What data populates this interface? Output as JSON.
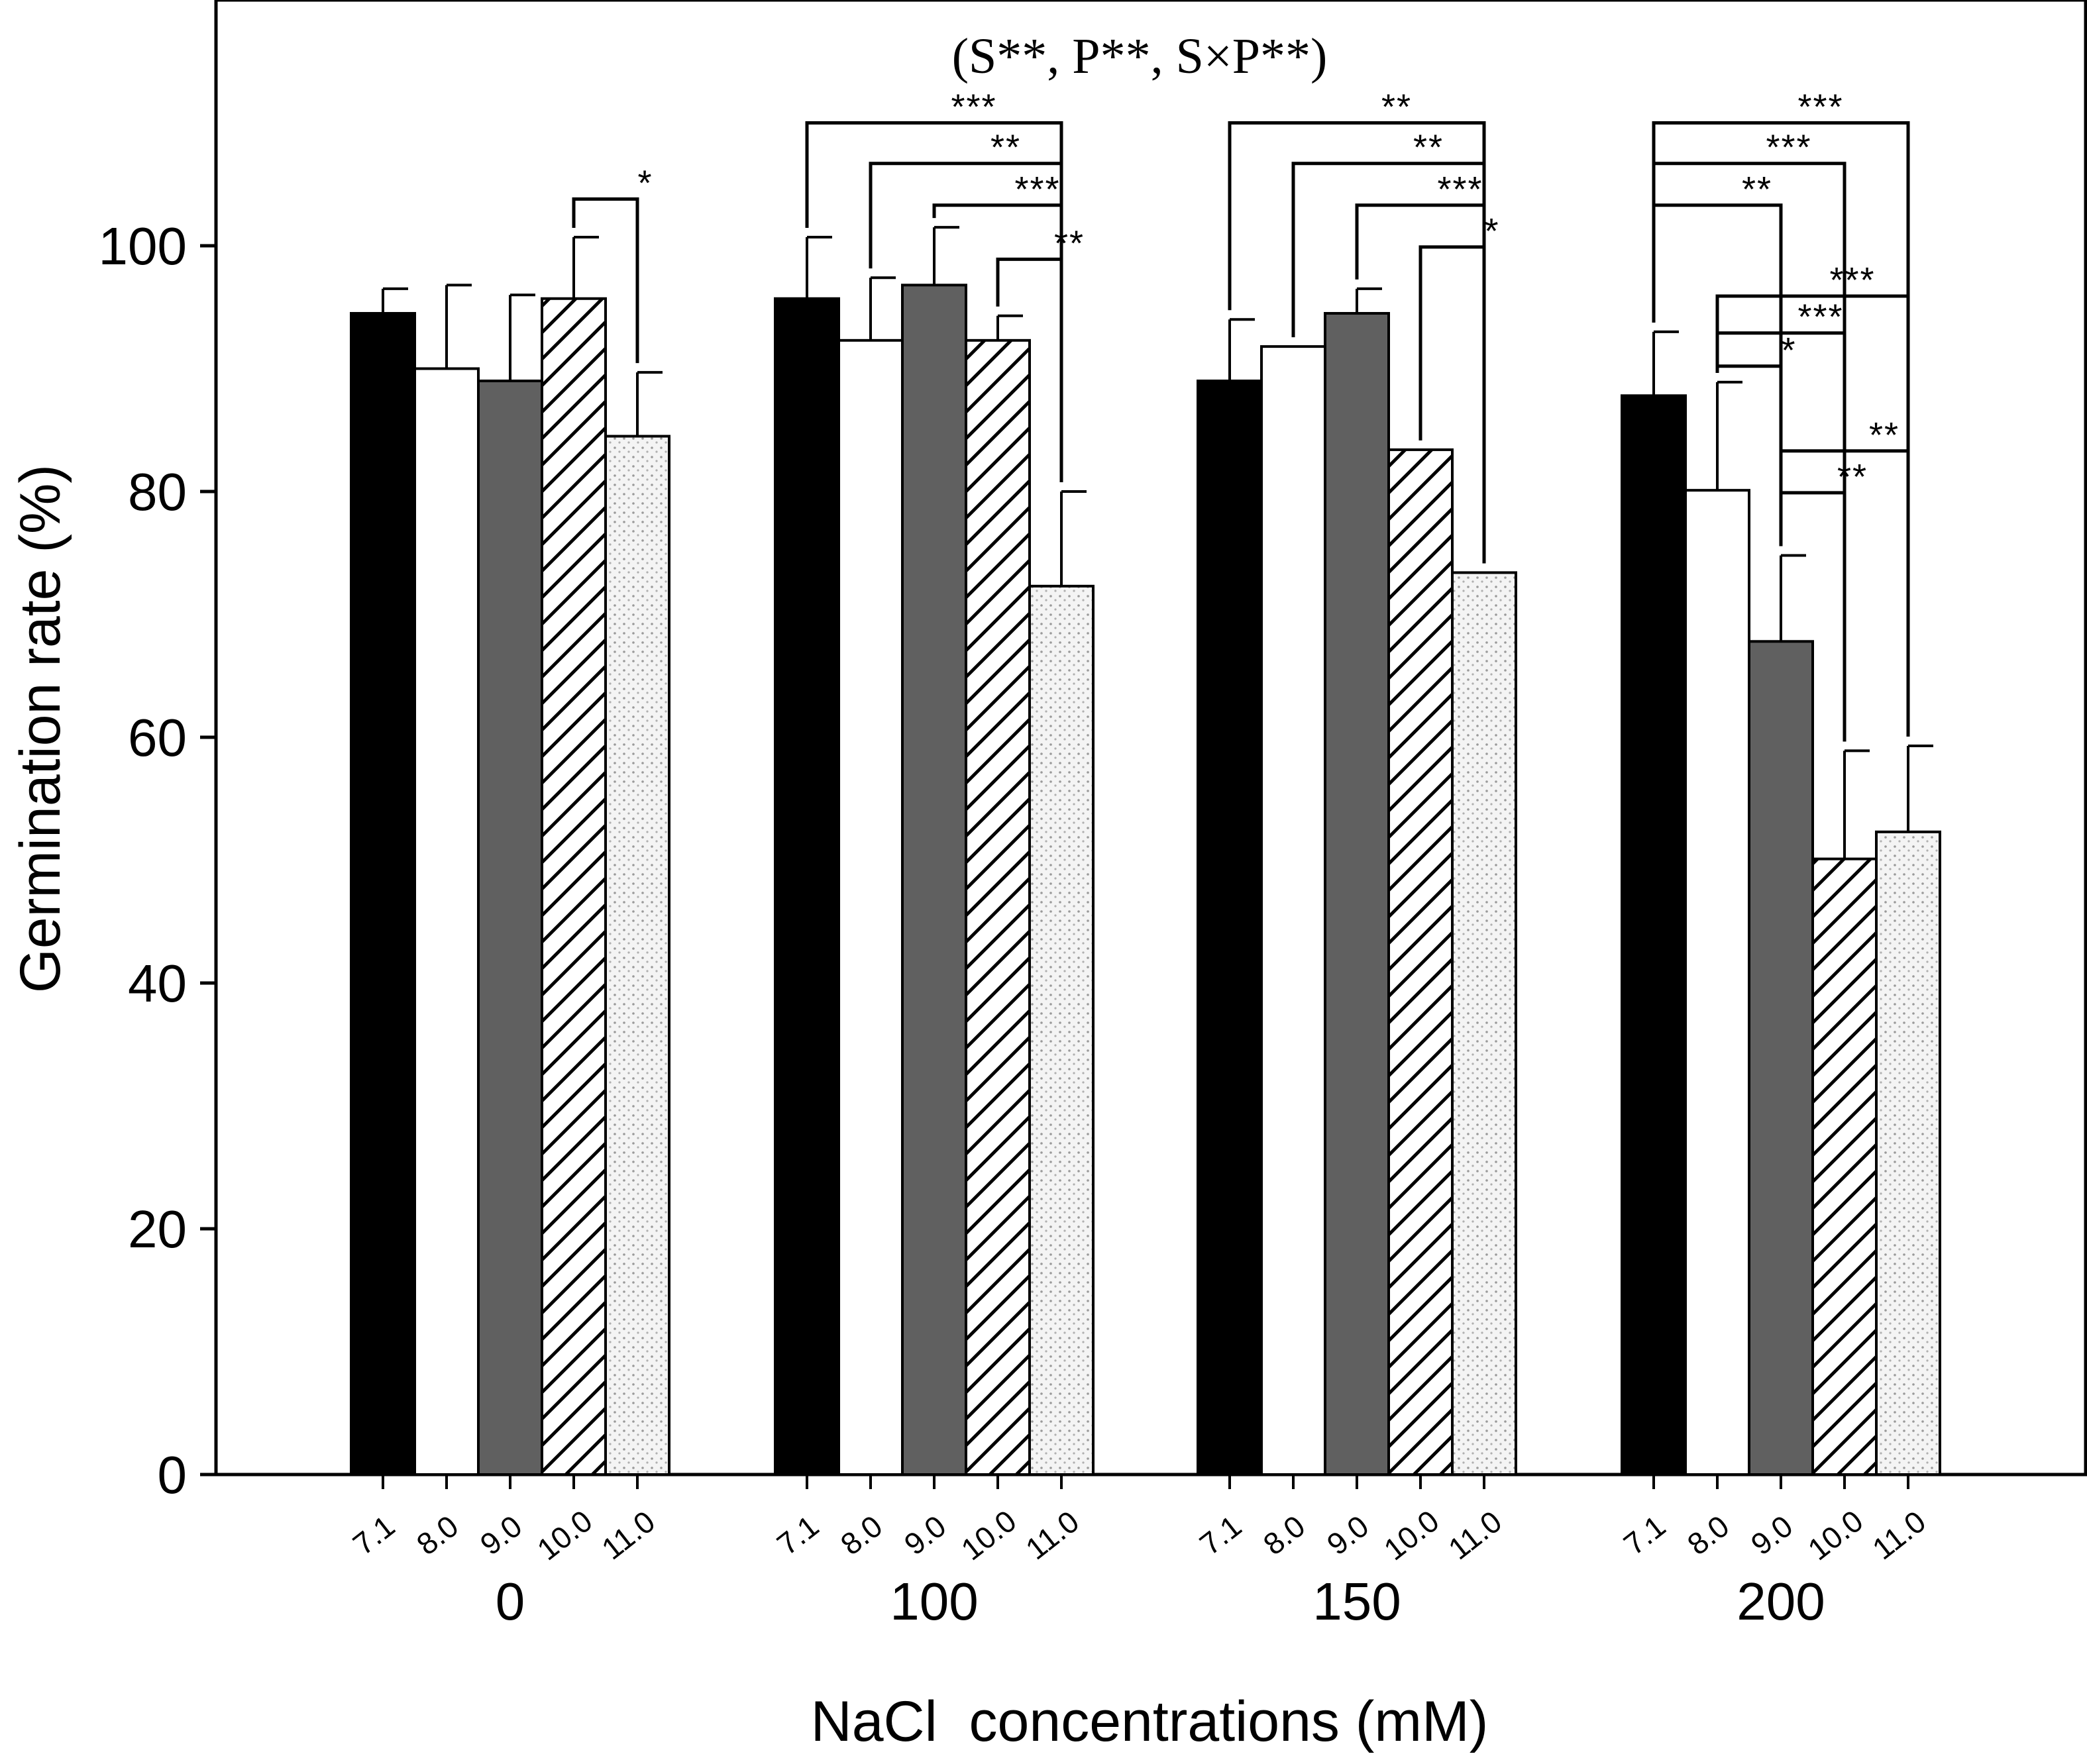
{
  "chart_data": {
    "type": "bar",
    "title": "",
    "annotation": "(S**, P**, S×P**)",
    "xlabel": "NaCl  concentrations (mM)",
    "ylabel": "Germination rate (%)",
    "ylim": [
      0,
      120
    ],
    "yticks": [
      "0",
      "20",
      "40",
      "60",
      "80",
      "100"
    ],
    "groups": [
      "0",
      "100",
      "150",
      "200"
    ],
    "ph_levels": [
      "7.1",
      "8.0",
      "9.0",
      "10.0",
      "11.0"
    ],
    "series": [
      {
        "name": "7.1",
        "fill": "#000000",
        "pattern": "solid",
        "values": [
          94.5,
          95.7,
          89.0,
          87.8
        ],
        "errors": [
          2.0,
          5.0,
          5.0,
          5.2
        ]
      },
      {
        "name": "8.0",
        "fill": "#ffffff",
        "pattern": "solid",
        "values": [
          90.0,
          92.3,
          91.8,
          80.1
        ],
        "errors": [
          6.8,
          5.1,
          0.0,
          8.8
        ]
      },
      {
        "name": "9.0",
        "fill": "#606060",
        "pattern": "solid",
        "values": [
          89.0,
          96.8,
          94.5,
          67.8
        ],
        "errors": [
          7.0,
          4.7,
          2.0,
          7.0
        ]
      },
      {
        "name": "10.0",
        "fill": "#ffffff",
        "pattern": "diagonal",
        "values": [
          95.7,
          92.3,
          83.4,
          50.1
        ],
        "errors": [
          5.0,
          2.0,
          0.0,
          8.8
        ]
      },
      {
        "name": "11.0",
        "fill": "#f2f2f2",
        "pattern": "dots",
        "values": [
          84.5,
          72.3,
          73.4,
          52.3
        ],
        "errors": [
          5.2,
          7.7,
          0.0,
          7.0
        ]
      }
    ],
    "significance": [
      {
        "group": 0,
        "from": 3,
        "to": 4,
        "y": 103.8,
        "label": "*"
      },
      {
        "group": 1,
        "from": 0,
        "to": 4,
        "y": 110.0,
        "label": "***"
      },
      {
        "group": 1,
        "from": 1,
        "to": 4,
        "y": 106.7,
        "label": "**"
      },
      {
        "group": 1,
        "from": 2,
        "to": 4,
        "y": 103.3,
        "label": "***"
      },
      {
        "group": 1,
        "from": 3,
        "to": 4,
        "y": 98.9,
        "label": "**"
      },
      {
        "group": 2,
        "from": 0,
        "to": 4,
        "y": 110.0,
        "label": "**"
      },
      {
        "group": 2,
        "from": 1,
        "to": 4,
        "y": 106.7,
        "label": "**"
      },
      {
        "group": 2,
        "from": 2,
        "to": 4,
        "y": 103.3,
        "label": "***"
      },
      {
        "group": 2,
        "from": 3,
        "to": 4,
        "y": 99.9,
        "label": "*"
      },
      {
        "group": 3,
        "from": 0,
        "to": 4,
        "y": 110.0,
        "label": "***"
      },
      {
        "group": 3,
        "from": 0,
        "to": 3,
        "y": 106.7,
        "label": "***"
      },
      {
        "group": 3,
        "from": 0,
        "to": 2,
        "y": 103.3,
        "label": "**"
      },
      {
        "group": 3,
        "from": 1,
        "to": 4,
        "y": 95.9,
        "label": "***"
      },
      {
        "group": 3,
        "from": 1,
        "to": 3,
        "y": 92.9,
        "label": "***"
      },
      {
        "group": 3,
        "from": 1,
        "to": 2,
        "y": 90.2,
        "label": "*"
      },
      {
        "group": 3,
        "from": 2,
        "to": 4,
        "y": 83.3,
        "label": "**"
      },
      {
        "group": 3,
        "from": 2,
        "to": 3,
        "y": 79.9,
        "label": "**"
      }
    ]
  }
}
